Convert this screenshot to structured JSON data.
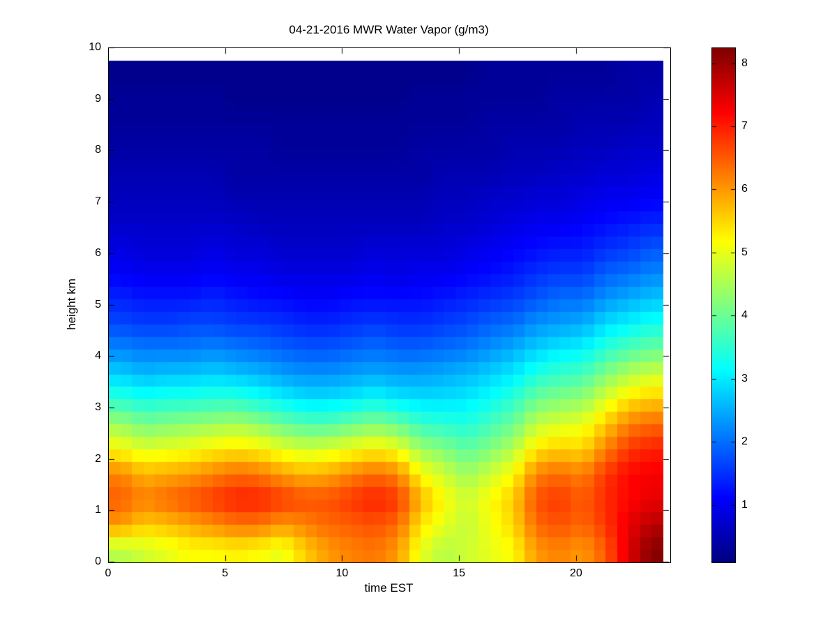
{
  "figure": {
    "background": "#ffffff"
  },
  "chart_data": {
    "type": "heatmap",
    "title": "04-21-2016 MWR Water Vapor (g/m3)",
    "xlabel": "time EST",
    "ylabel": "height km",
    "xlim": [
      0,
      24
    ],
    "ylim": [
      0,
      10
    ],
    "xticks": [
      0,
      5,
      10,
      15,
      20
    ],
    "yticks": [
      0,
      1,
      2,
      3,
      4,
      5,
      6,
      7,
      8,
      9,
      10
    ],
    "grid": false,
    "colormap": "jet",
    "colorbar": {
      "position": "right",
      "ticks": [
        1,
        2,
        3,
        4,
        5,
        6,
        7,
        8
      ],
      "clim": [
        0.1,
        8.25
      ]
    },
    "data_extent": {
      "t": [
        0,
        23.7
      ],
      "h": [
        0,
        9.75
      ]
    },
    "times": [
      0,
      1,
      2,
      3,
      4,
      5,
      6,
      7,
      8,
      9,
      10,
      11,
      12,
      13,
      14,
      15,
      16,
      17,
      18,
      19,
      20,
      21,
      22,
      23
    ],
    "heights": [
      0,
      0.5,
      1,
      1.5,
      2,
      2.5,
      3,
      3.5,
      4,
      4.5,
      5,
      5.5,
      6,
      6.5,
      7,
      7.5,
      8,
      8.5,
      9,
      9.5
    ],
    "values_note": "rows ordered bottom (0 km) to top (9.5 km), one value per hour EST",
    "values": [
      [
        4.6,
        4.8,
        5.0,
        5.2,
        5.2,
        5.3,
        5.2,
        5.0,
        5.6,
        6.0,
        6.2,
        6.3,
        6.0,
        5.0,
        4.6,
        4.8,
        5.0,
        5.2,
        6.0,
        6.2,
        6.0,
        6.5,
        7.5,
        8.2
      ],
      [
        6.0,
        5.6,
        5.7,
        5.9,
        6.1,
        6.3,
        6.3,
        6.0,
        6.2,
        6.4,
        6.5,
        6.6,
        6.4,
        5.4,
        5.0,
        4.7,
        5.1,
        5.5,
        6.4,
        6.6,
        6.4,
        6.8,
        7.4,
        7.8
      ],
      [
        6.5,
        6.2,
        6.4,
        6.6,
        6.8,
        7.0,
        7.0,
        6.8,
        6.6,
        6.6,
        6.8,
        7.0,
        6.8,
        5.8,
        5.2,
        4.8,
        5.2,
        5.6,
        6.6,
        6.8,
        6.5,
        6.9,
        7.2,
        7.4
      ],
      [
        6.2,
        5.8,
        5.9,
        6.0,
        6.2,
        6.4,
        6.3,
        6.0,
        5.8,
        5.9,
        6.2,
        6.4,
        6.2,
        5.2,
        4.8,
        4.4,
        4.8,
        5.2,
        6.2,
        6.4,
        6.2,
        6.8,
        7.2,
        7.3
      ],
      [
        5.2,
        4.9,
        5.0,
        5.1,
        5.3,
        5.4,
        5.3,
        5.0,
        4.8,
        4.9,
        5.1,
        5.3,
        5.1,
        4.4,
        4.2,
        3.9,
        4.2,
        4.6,
        5.4,
        5.6,
        5.5,
        6.2,
        6.8,
        7.0
      ],
      [
        4.4,
        4.1,
        4.2,
        4.3,
        4.4,
        4.5,
        4.3,
        4.0,
        3.8,
        3.8,
        4.0,
        4.2,
        4.0,
        3.6,
        3.5,
        3.4,
        3.7,
        4.0,
        4.7,
        4.9,
        5.0,
        5.6,
        6.2,
        6.4
      ],
      [
        3.5,
        3.3,
        3.4,
        3.4,
        3.5,
        3.5,
        3.3,
        3.1,
        2.9,
        2.9,
        3.0,
        3.2,
        3.0,
        2.9,
        2.9,
        3.0,
        3.2,
        3.5,
        4.0,
        4.2,
        4.3,
        4.9,
        5.4,
        5.6
      ],
      [
        2.8,
        2.6,
        2.7,
        2.7,
        2.8,
        2.7,
        2.6,
        2.4,
        2.3,
        2.3,
        2.4,
        2.5,
        2.4,
        2.4,
        2.5,
        2.6,
        2.8,
        3.0,
        3.4,
        3.6,
        3.7,
        4.2,
        4.6,
        4.8
      ],
      [
        2.2,
        2.1,
        2.1,
        2.1,
        2.2,
        2.1,
        2.0,
        1.9,
        1.8,
        1.8,
        1.9,
        2.0,
        1.9,
        1.9,
        2.0,
        2.1,
        2.3,
        2.5,
        2.8,
        3.0,
        3.1,
        3.5,
        3.8,
        4.0
      ],
      [
        1.7,
        1.6,
        1.6,
        1.7,
        1.7,
        1.6,
        1.6,
        1.5,
        1.4,
        1.4,
        1.5,
        1.6,
        1.5,
        1.5,
        1.6,
        1.7,
        1.9,
        2.0,
        2.3,
        2.4,
        2.5,
        2.9,
        3.1,
        3.3
      ],
      [
        1.4,
        1.3,
        1.3,
        1.3,
        1.4,
        1.3,
        1.2,
        1.2,
        1.1,
        1.1,
        1.2,
        1.2,
        1.2,
        1.2,
        1.3,
        1.4,
        1.5,
        1.6,
        1.8,
        2.0,
        2.0,
        2.3,
        2.5,
        2.7
      ],
      [
        1.1,
        1.0,
        1.0,
        1.0,
        1.1,
        1.0,
        1.0,
        0.9,
        0.9,
        0.9,
        0.9,
        1.0,
        0.9,
        1.0,
        1.0,
        1.1,
        1.2,
        1.3,
        1.5,
        1.6,
        1.6,
        1.9,
        2.0,
        2.2
      ],
      [
        0.9,
        0.8,
        0.8,
        0.8,
        0.9,
        0.8,
        0.8,
        0.7,
        0.7,
        0.7,
        0.7,
        0.8,
        0.8,
        0.8,
        0.8,
        0.9,
        1.0,
        1.1,
        1.2,
        1.3,
        1.3,
        1.5,
        1.6,
        1.8
      ],
      [
        0.7,
        0.7,
        0.7,
        0.7,
        0.7,
        0.7,
        0.6,
        0.6,
        0.6,
        0.6,
        0.6,
        0.6,
        0.6,
        0.6,
        0.7,
        0.7,
        0.8,
        0.9,
        1.0,
        1.0,
        1.1,
        1.2,
        1.3,
        1.4
      ],
      [
        0.6,
        0.6,
        0.6,
        0.6,
        0.6,
        0.5,
        0.5,
        0.5,
        0.5,
        0.5,
        0.5,
        0.5,
        0.5,
        0.5,
        0.6,
        0.6,
        0.7,
        0.7,
        0.8,
        0.8,
        0.9,
        1.0,
        1.0,
        1.1
      ],
      [
        0.5,
        0.5,
        0.5,
        0.5,
        0.5,
        0.4,
        0.4,
        0.4,
        0.4,
        0.4,
        0.4,
        0.4,
        0.4,
        0.4,
        0.5,
        0.5,
        0.5,
        0.6,
        0.6,
        0.7,
        0.7,
        0.8,
        0.8,
        0.9
      ],
      [
        0.4,
        0.4,
        0.4,
        0.4,
        0.4,
        0.4,
        0.4,
        0.3,
        0.3,
        0.3,
        0.3,
        0.3,
        0.3,
        0.4,
        0.4,
        0.4,
        0.4,
        0.5,
        0.5,
        0.5,
        0.6,
        0.6,
        0.7,
        0.7
      ],
      [
        0.3,
        0.3,
        0.3,
        0.3,
        0.3,
        0.3,
        0.3,
        0.3,
        0.3,
        0.3,
        0.3,
        0.3,
        0.3,
        0.3,
        0.3,
        0.3,
        0.4,
        0.4,
        0.4,
        0.4,
        0.5,
        0.5,
        0.5,
        0.6
      ],
      [
        0.3,
        0.3,
        0.3,
        0.3,
        0.3,
        0.2,
        0.2,
        0.2,
        0.2,
        0.2,
        0.2,
        0.2,
        0.2,
        0.3,
        0.3,
        0.3,
        0.3,
        0.3,
        0.3,
        0.4,
        0.4,
        0.4,
        0.4,
        0.5
      ],
      [
        0.2,
        0.2,
        0.2,
        0.2,
        0.2,
        0.2,
        0.2,
        0.2,
        0.2,
        0.2,
        0.2,
        0.2,
        0.2,
        0.2,
        0.2,
        0.2,
        0.3,
        0.3,
        0.3,
        0.3,
        0.3,
        0.3,
        0.4,
        0.4
      ]
    ]
  }
}
